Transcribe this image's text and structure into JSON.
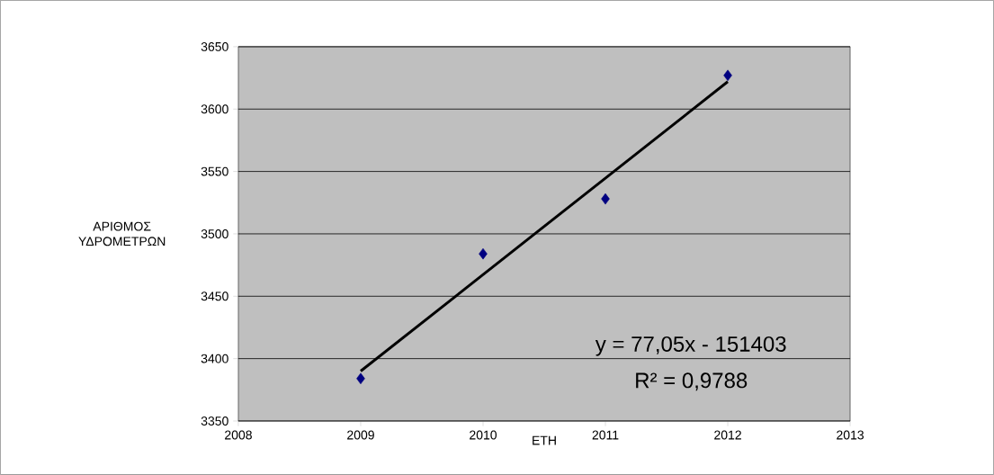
{
  "chart_data": {
    "type": "scatter",
    "xlabel": "ΕΤΗ",
    "ylabel": "ΑΡΙΘΜΟΣ ΥΔΡΟΜΕΤΡΩΝ",
    "x": [
      2009,
      2010,
      2011,
      2012
    ],
    "series": [
      {
        "color": "#000080",
        "marker": "diamond",
        "values": [
          3384,
          3484,
          3528,
          3627
        ]
      },
      {
        "type": "line",
        "color": "#000000",
        "marker": "none",
        "line_style": "solid",
        "x": [
          2009,
          2012
        ],
        "values": [
          3390,
          3622
        ]
      }
    ],
    "xlim": [
      2008,
      2013
    ],
    "xticks": [
      2008,
      2009,
      2010,
      2011,
      2012,
      2013
    ],
    "ylim": [
      3350,
      3650
    ],
    "yticks": [
      3350,
      3400,
      3450,
      3500,
      3550,
      3600,
      3650
    ],
    "grid": "y",
    "annotations": [
      "y = 77,05x - 151403",
      "R² = 0,9788"
    ]
  }
}
